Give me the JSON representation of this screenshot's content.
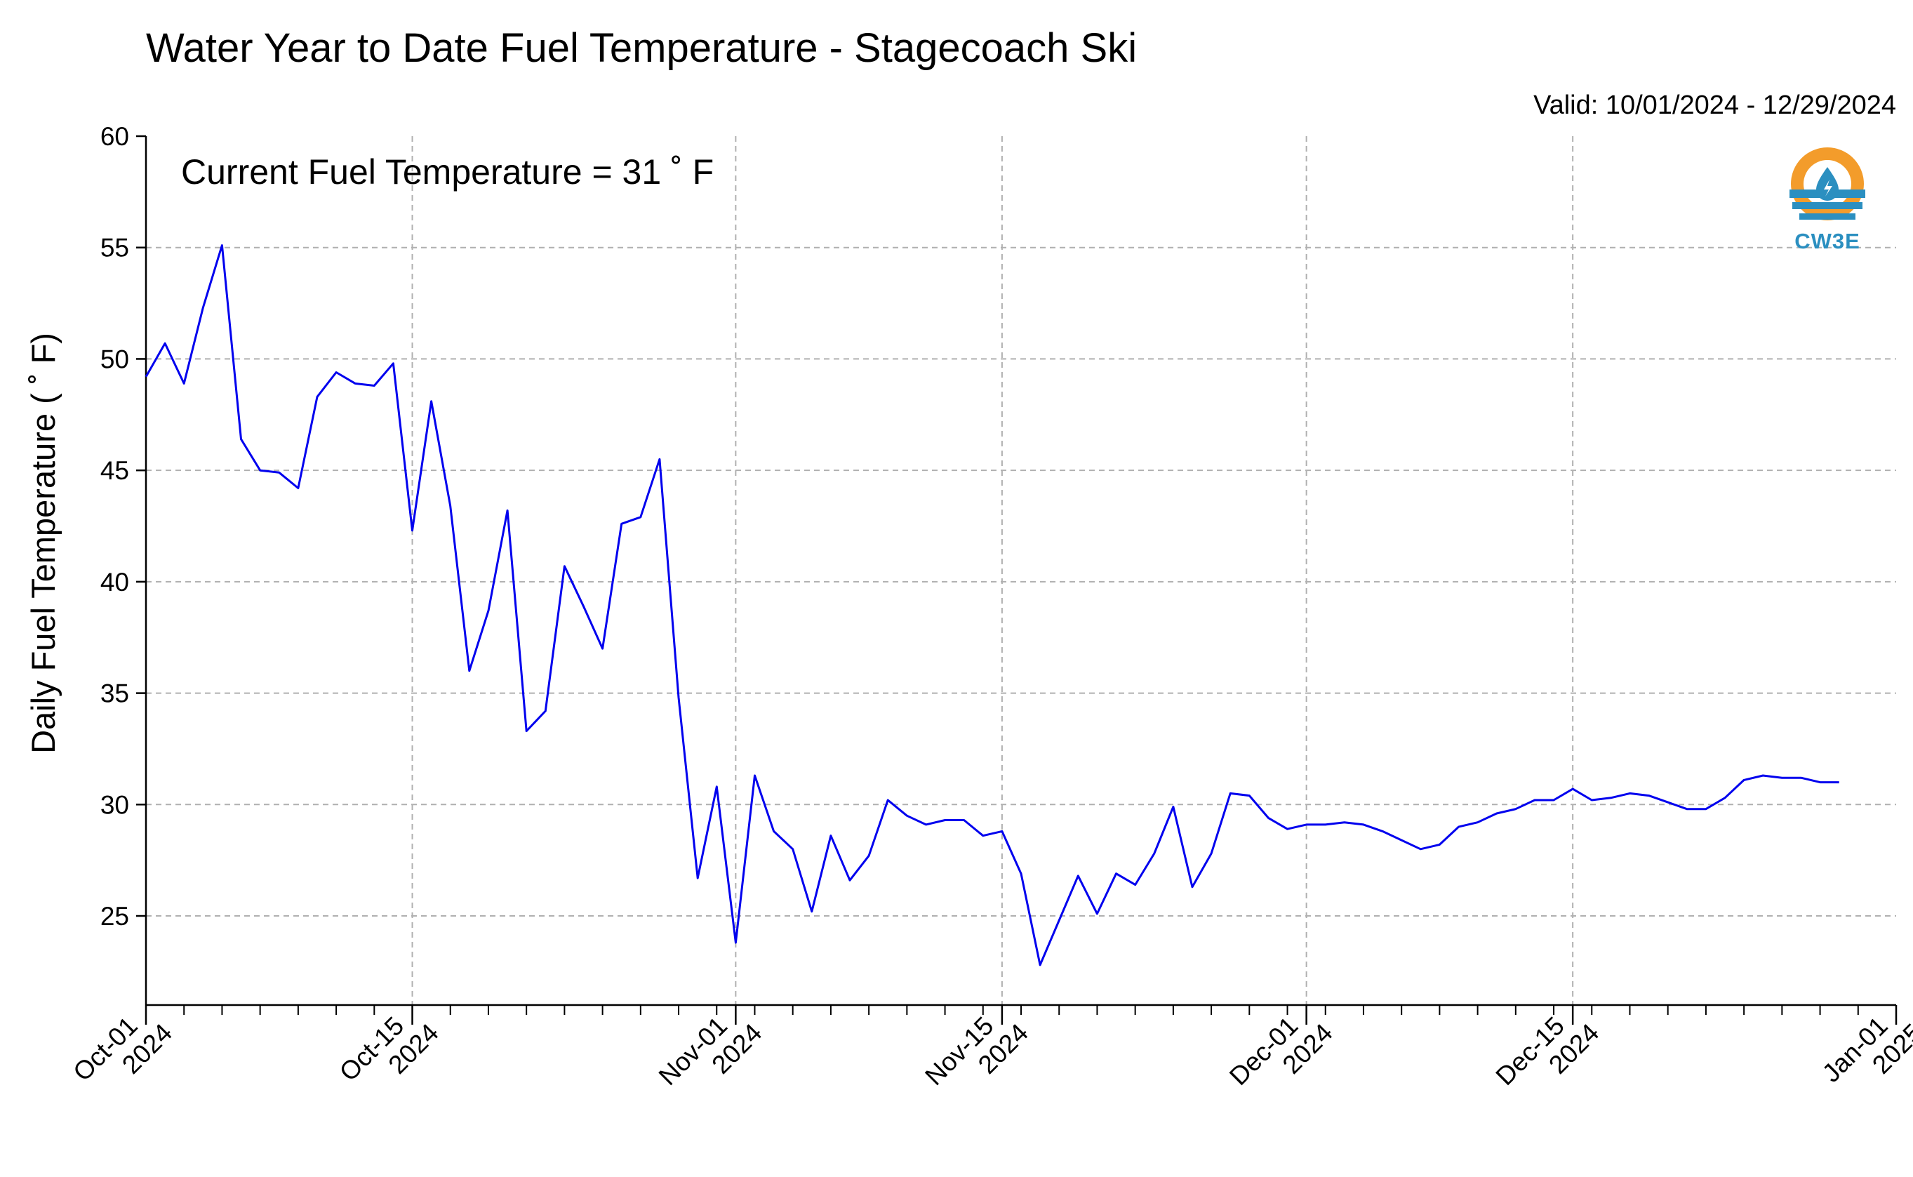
{
  "chart_data": {
    "type": "line",
    "title": "Water Year to Date Fuel Temperature - Stagecoach Ski",
    "subtitle": "Valid: 10/01/2024 - 12/29/2024",
    "ylabel": "Daily Fuel Temperature ($^\\circ$F)",
    "ylabel_display": "Daily Fuel Temperature ( ˚ F)",
    "xlabel": "",
    "annotation": "Current Fuel Temperature = 31  ˚ F",
    "logo_text": "CW3E",
    "ylim": [
      21,
      60
    ],
    "xlim": [
      "2024-10-01",
      "2025-01-01"
    ],
    "y_ticks": [
      25,
      30,
      35,
      40,
      45,
      50,
      55,
      60
    ],
    "x_ticks": [
      {
        "date": "2024-10-01",
        "line1": "Oct-01",
        "line2": "2024"
      },
      {
        "date": "2024-10-15",
        "line1": "Oct-15",
        "line2": "2024"
      },
      {
        "date": "2024-11-01",
        "line1": "Nov-01",
        "line2": "2024"
      },
      {
        "date": "2024-11-15",
        "line1": "Nov-15",
        "line2": "2024"
      },
      {
        "date": "2024-12-01",
        "line1": "Dec-01",
        "line2": "2024"
      },
      {
        "date": "2024-12-15",
        "line1": "Dec-15",
        "line2": "2024"
      },
      {
        "date": "2025-01-01",
        "line1": "Jan-01",
        "line2": "2025"
      }
    ],
    "grid": true,
    "colors": {
      "line": "#0000ee",
      "grid": "#b0b0b0",
      "logo_orange": "#f39c2b",
      "logo_blue": "#2b8fc0"
    },
    "series": [
      {
        "start_date": "2024-10-01",
        "values": [
          49.2,
          50.7,
          48.9,
          52.3,
          55.1,
          46.4,
          45.0,
          44.9,
          44.2,
          48.3,
          49.4,
          48.9,
          48.8,
          49.8,
          42.3,
          48.1,
          43.4,
          36.0,
          38.7,
          43.2,
          33.3,
          34.2,
          40.7,
          38.9,
          37.0,
          42.6,
          42.9,
          45.5,
          34.8,
          26.7,
          30.8,
          23.8,
          31.3,
          28.8,
          28.0,
          25.2,
          28.6,
          26.6,
          27.7,
          30.2,
          29.5,
          29.1,
          29.3,
          29.3,
          28.6,
          28.8,
          26.9,
          22.8,
          24.8,
          26.8,
          25.1,
          26.9,
          26.4,
          27.8,
          29.9,
          26.3,
          27.8,
          30.5,
          30.4,
          29.4,
          28.9,
          29.1,
          29.1,
          29.2,
          29.1,
          28.8,
          28.4,
          28.0,
          28.2,
          29.0,
          29.2,
          29.6,
          29.8,
          30.2,
          30.2,
          30.7,
          30.2,
          30.3,
          30.5,
          30.4,
          30.1,
          29.8,
          29.8,
          30.3,
          31.1,
          31.3,
          31.2,
          31.2,
          31.0,
          31.0
        ]
      }
    ]
  }
}
